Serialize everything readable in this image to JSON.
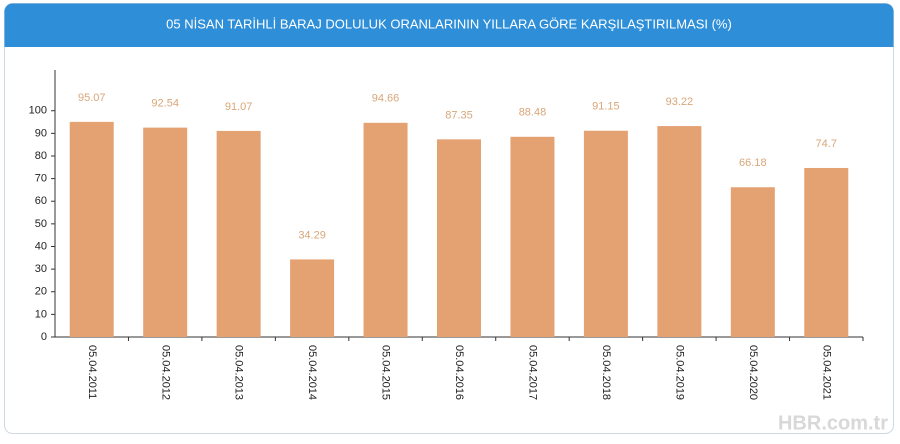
{
  "chart_data": {
    "type": "bar",
    "title": "05 NİSAN TARİHLİ BARAJ DOLULUK ORANLARININ YILLARA GÖRE KARŞILAŞTIRILMASI (%)",
    "categories": [
      "05.04.2011",
      "05.04.2012",
      "05.04.2013",
      "05.04.2014",
      "05.04.2015",
      "05.04.2016",
      "05.04.2017",
      "05.04.2018",
      "05.04.2019",
      "05.04.2020",
      "05.04.2021"
    ],
    "values": [
      95.07,
      92.54,
      91.07,
      34.29,
      94.66,
      87.35,
      88.48,
      91.15,
      93.22,
      66.18,
      74.7
    ],
    "color": "#e4a172",
    "ylim": [
      0,
      118
    ],
    "yticks": [
      0,
      10,
      20,
      30,
      40,
      50,
      60,
      70,
      80,
      90,
      100
    ],
    "watermark": "HBR.com.tr"
  }
}
